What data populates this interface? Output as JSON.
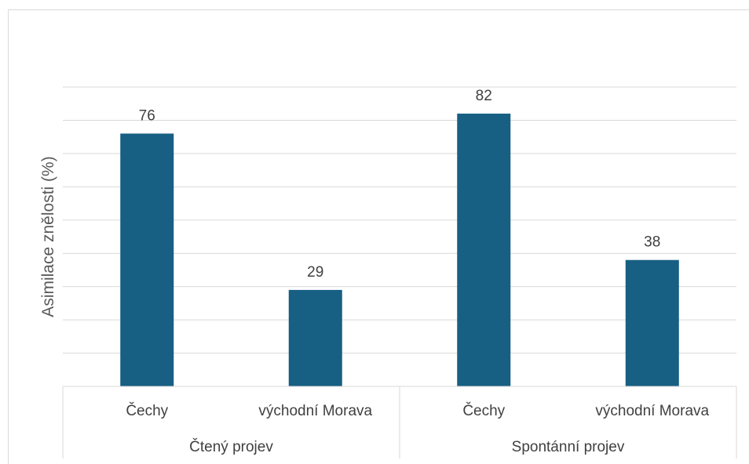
{
  "chart_data": {
    "type": "bar",
    "ylabel": "Asimilace znělosti (%)",
    "ylim": [
      0,
      90
    ],
    "y_gridline_step": 10,
    "grid": true,
    "groups": [
      {
        "label": "Čtený projev",
        "categories": [
          "Čechy",
          "východní Morava"
        ]
      },
      {
        "label": "Spontánní projev",
        "categories": [
          "Čechy",
          "východní Morava"
        ]
      }
    ],
    "categories": [
      "Čechy",
      "východní Morava",
      "Čechy",
      "východní Morava"
    ],
    "values": [
      76,
      29,
      82,
      38
    ],
    "data_labels": [
      "76",
      "29",
      "82",
      "38"
    ],
    "bar_color": "#175f83",
    "gridline_color": "#d9d9d9",
    "axis_line_color": "#d9d9d9"
  }
}
